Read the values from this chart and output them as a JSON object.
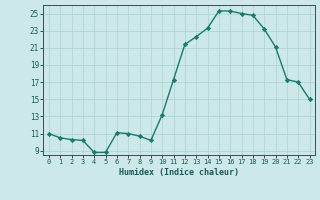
{
  "title": "",
  "xlabel": "Humidex (Indice chaleur)",
  "x": [
    0,
    1,
    2,
    3,
    4,
    5,
    6,
    7,
    8,
    9,
    10,
    11,
    12,
    13,
    14,
    15,
    16,
    17,
    18,
    19,
    20,
    21,
    22,
    23
  ],
  "y": [
    11.0,
    10.5,
    10.3,
    10.2,
    8.8,
    8.8,
    11.1,
    11.0,
    10.7,
    10.2,
    13.2,
    17.3,
    21.4,
    22.3,
    23.3,
    25.3,
    25.3,
    25.0,
    24.8,
    23.2,
    21.1,
    17.3,
    17.0,
    15.0
  ],
  "line_color": "#1a7a6e",
  "marker": "D",
  "marker_size": 2.2,
  "line_width": 1.0,
  "bg_color": "#cce8e8",
  "grid_color": "#aad0d0",
  "tick_label_color": "#1a5a5a",
  "axis_color": "#1a5a5a",
  "ylim": [
    8.5,
    26.0
  ],
  "yticks": [
    9,
    11,
    13,
    15,
    17,
    19,
    21,
    23,
    25
  ],
  "xlim": [
    -0.5,
    23.5
  ],
  "xticks": [
    0,
    1,
    2,
    3,
    4,
    5,
    6,
    7,
    8,
    9,
    10,
    11,
    12,
    13,
    14,
    15,
    16,
    17,
    18,
    19,
    20,
    21,
    22,
    23
  ]
}
